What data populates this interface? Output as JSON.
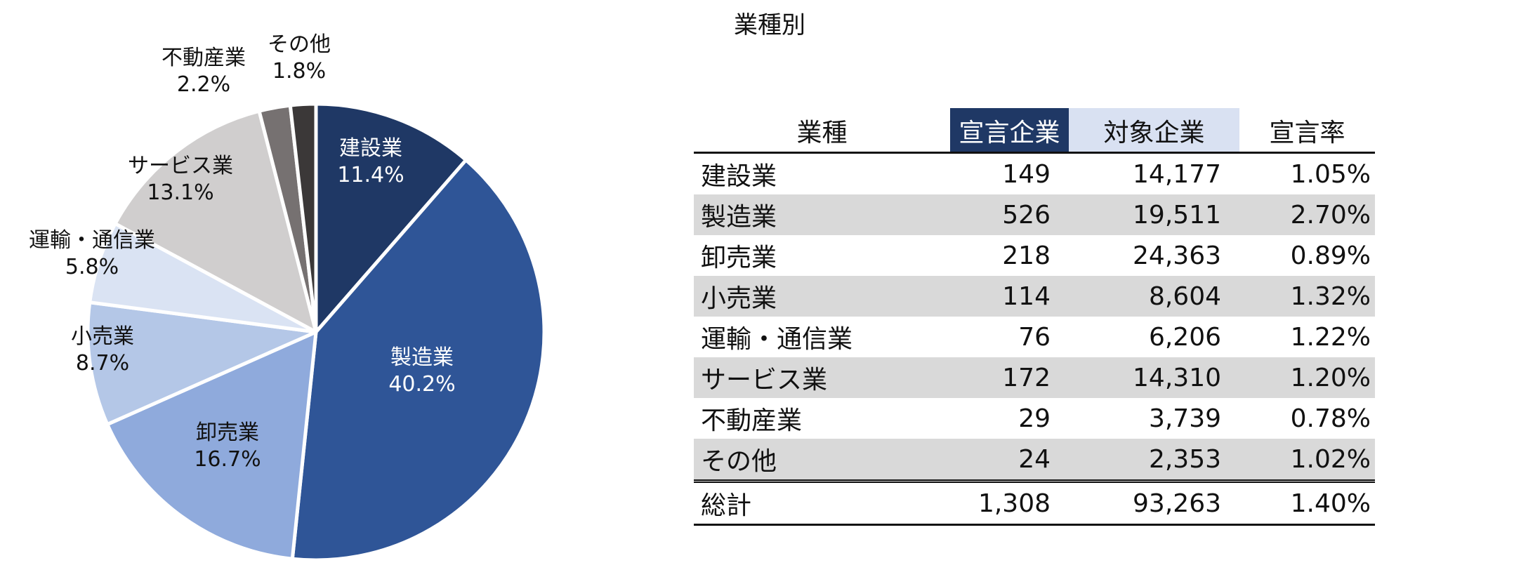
{
  "title": "業種別",
  "colors": {
    "slices": [
      "#1f3865",
      "#2f5597",
      "#8faadc",
      "#b4c7e7",
      "#dae3f3",
      "#d0cece",
      "#767171",
      "#3b3838"
    ],
    "slice_label_colors": [
      "#ffffff",
      "#ffffff",
      "#111111",
      "#111111",
      "#111111",
      "#111111",
      "#111111",
      "#111111"
    ],
    "header_declared_bg": "#1f3865",
    "header_target_bg": "#d9e1f2",
    "row_shade": "#d9d9d9"
  },
  "chart_data": {
    "type": "pie",
    "categories": [
      "建設業",
      "製造業",
      "卸売業",
      "小売業",
      "運輸・通信業",
      "サービス業",
      "不動産業",
      "その他"
    ],
    "values": [
      11.4,
      40.2,
      16.7,
      8.7,
      5.8,
      13.1,
      2.2,
      1.8
    ],
    "labels": [
      "11.4%",
      "40.2%",
      "16.7%",
      "8.7%",
      "5.8%",
      "13.1%",
      "2.2%",
      "1.8%"
    ],
    "start_angle": "12 o'clock",
    "direction": "clockwise"
  },
  "table": {
    "headers": [
      "業種",
      "宣言企業",
      "対象企業",
      "宣言率"
    ],
    "rows": [
      [
        "建設業",
        "149",
        "14,177",
        "1.05%"
      ],
      [
        "製造業",
        "526",
        "19,511",
        "2.70%"
      ],
      [
        "卸売業",
        "218",
        "24,363",
        "0.89%"
      ],
      [
        "小売業",
        "114",
        "8,604",
        "1.32%"
      ],
      [
        "運輸・通信業",
        "76",
        "6,206",
        "1.22%"
      ],
      [
        "サービス業",
        "172",
        "14,310",
        "1.20%"
      ],
      [
        "不動産業",
        "29",
        "3,739",
        "0.78%"
      ],
      [
        "その他",
        "24",
        "2,353",
        "1.02%"
      ]
    ],
    "total": [
      "総計",
      "1,308",
      "93,263",
      "1.40%"
    ]
  }
}
